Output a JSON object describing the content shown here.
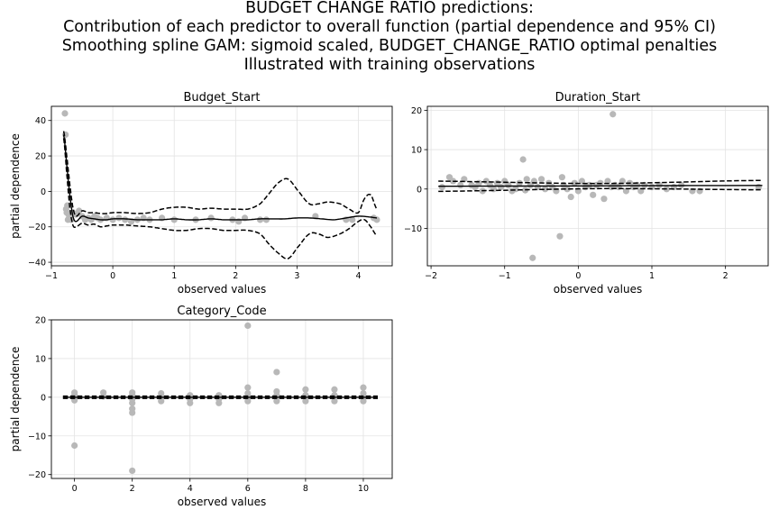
{
  "figure": {
    "title_lines": [
      "BUDGET CHANGE RATIO predictions:",
      "Contribution of each predictor to overall function (partial dependence and 95% CI)",
      "Smoothing spline GAM: sigmoid scaled, BUDGET_CHANGE_RATIO optimal penalties",
      "Illustrated with training observations"
    ]
  },
  "colors": {
    "observations": "#b8b8b8",
    "band": "#c8c8c8",
    "line": "#000000",
    "grid": "#e3e3e3"
  },
  "chart_data": [
    {
      "type": "scatter",
      "title": "Budget_Start",
      "xlabel": "observed values",
      "ylabel": "partial dependence",
      "xlim": [
        -1.0,
        4.55
      ],
      "ylim": [
        -42,
        48
      ],
      "xticks": [
        -1,
        0,
        1,
        2,
        3,
        4
      ],
      "xtick_labels": [
        "−1",
        "0",
        "1",
        "2",
        "3",
        "4"
      ],
      "yticks": [
        -40,
        -20,
        0,
        20,
        40
      ],
      "ytick_labels": [
        "−40",
        "−20",
        "0",
        "20",
        "40"
      ],
      "grid": true,
      "observations": {
        "x": [
          -0.78,
          -0.77,
          -0.76,
          -0.75,
          -0.74,
          -0.73,
          -0.72,
          -0.71,
          -0.7,
          -0.68,
          -0.65,
          -0.6,
          -0.55,
          -0.5,
          -0.45,
          -0.4,
          -0.35,
          -0.3,
          -0.25,
          -0.2,
          -0.1,
          0.0,
          0.1,
          0.2,
          0.3,
          0.4,
          0.5,
          0.6,
          0.8,
          1.0,
          1.35,
          1.6,
          1.95,
          2.05,
          2.15,
          2.4,
          2.5,
          3.3,
          3.8,
          3.9,
          4.25,
          4.3
        ],
        "y": [
          44,
          32,
          -10,
          -12,
          -8,
          -16,
          -13,
          -15,
          -14,
          -16,
          -12,
          -13,
          -11,
          -14,
          -16,
          -15,
          -16,
          -14,
          -15,
          -16,
          -15,
          -16,
          -15,
          -16,
          -17,
          -16,
          -15,
          -16,
          -15,
          -16,
          -16,
          -15,
          -16,
          -17,
          -15,
          -16,
          -16,
          -14,
          -16,
          -16,
          -15,
          -16
        ]
      },
      "pd": {
        "x": [
          -0.8,
          -0.75,
          -0.7,
          -0.65,
          -0.6,
          -0.5,
          -0.4,
          -0.3,
          -0.2,
          -0.1,
          0.0,
          0.2,
          0.4,
          0.6,
          0.8,
          1.0,
          1.2,
          1.4,
          1.6,
          1.8,
          2.0,
          2.2,
          2.4,
          2.6,
          2.8,
          3.0,
          3.2,
          3.4,
          3.6,
          3.8,
          4.0,
          4.2,
          4.3
        ],
        "y": [
          32,
          15,
          -2,
          -14,
          -17,
          -14,
          -15,
          -15.5,
          -16,
          -16,
          -15.5,
          -15.5,
          -16,
          -16,
          -16,
          -15.5,
          -16,
          -16,
          -15.5,
          -16,
          -16,
          -16,
          -15.5,
          -15.5,
          -15.5,
          -15,
          -15,
          -15.5,
          -16,
          -15,
          -14,
          -14.5,
          -15
        ]
      },
      "ci_lower": {
        "x": [
          -0.8,
          -0.75,
          -0.7,
          -0.65,
          -0.6,
          -0.5,
          -0.4,
          -0.3,
          -0.2,
          -0.1,
          0.0,
          0.2,
          0.4,
          0.6,
          0.8,
          1.0,
          1.2,
          1.4,
          1.6,
          1.8,
          2.0,
          2.2,
          2.4,
          2.55,
          2.7,
          2.85,
          3.0,
          3.2,
          3.35,
          3.5,
          3.7,
          3.85,
          4.0,
          4.1,
          4.2,
          4.3
        ],
        "y": [
          30,
          10,
          -9,
          -19,
          -20,
          -18,
          -19,
          -18.5,
          -20,
          -19.5,
          -19,
          -19,
          -19.5,
          -20,
          -21,
          -22,
          -22,
          -21,
          -21,
          -22,
          -22,
          -22,
          -24,
          -30,
          -35,
          -38,
          -32,
          -24,
          -24,
          -26,
          -24,
          -21,
          -17,
          -16,
          -20,
          -25
        ]
      },
      "ci_upper": {
        "x": [
          -0.8,
          -0.75,
          -0.7,
          -0.65,
          -0.6,
          -0.5,
          -0.4,
          -0.3,
          -0.2,
          -0.1,
          0.0,
          0.2,
          0.4,
          0.6,
          0.8,
          1.0,
          1.2,
          1.4,
          1.6,
          1.8,
          2.0,
          2.2,
          2.4,
          2.55,
          2.7,
          2.85,
          3.0,
          3.2,
          3.35,
          3.5,
          3.7,
          3.85,
          4.0,
          4.1,
          4.2,
          4.3
        ],
        "y": [
          34,
          20,
          4,
          -9,
          -14,
          -11,
          -12,
          -12,
          -12.5,
          -12.5,
          -12,
          -12,
          -12.5,
          -12,
          -10,
          -9,
          -9,
          -10,
          -9.5,
          -10,
          -10,
          -10,
          -7,
          -1,
          5,
          7,
          1,
          -7,
          -7,
          -6,
          -7,
          -10,
          -12,
          -4,
          -2,
          -10
        ]
      }
    },
    {
      "type": "scatter",
      "title": "Duration_Start",
      "xlabel": "observed values",
      "ylabel": "",
      "xlim": [
        -2.05,
        2.58
      ],
      "ylim": [
        -19.5,
        21
      ],
      "xticks": [
        -2,
        -1,
        0,
        1,
        2
      ],
      "xtick_labels": [
        "−2",
        "−1",
        "0",
        "1",
        "2"
      ],
      "yticks": [
        -10,
        0,
        10,
        20
      ],
      "ytick_labels": [
        "−10",
        "0",
        "10",
        "20"
      ],
      "grid": true,
      "observations": {
        "x": [
          -1.85,
          -1.75,
          -1.7,
          -1.6,
          -1.55,
          -1.45,
          -1.4,
          -1.35,
          -1.3,
          -1.25,
          -1.2,
          -1.15,
          -1.1,
          -1.05,
          -1.0,
          -0.95,
          -0.9,
          -0.85,
          -0.8,
          -0.75,
          -0.72,
          -0.7,
          -0.65,
          -0.62,
          -0.6,
          -0.55,
          -0.5,
          -0.45,
          -0.4,
          -0.35,
          -0.3,
          -0.25,
          -0.22,
          -0.2,
          -0.15,
          -0.1,
          -0.05,
          0.0,
          0.05,
          0.1,
          0.15,
          0.2,
          0.25,
          0.3,
          0.35,
          0.4,
          0.45,
          0.47,
          0.5,
          0.55,
          0.6,
          0.65,
          0.7,
          0.75,
          0.8,
          0.85,
          0.9,
          1.0,
          1.1,
          1.2,
          1.3,
          1.4,
          1.55,
          1.65,
          2.45
        ],
        "y": [
          0.5,
          3,
          2,
          1,
          2.5,
          1,
          0.5,
          1.5,
          -0.5,
          2,
          1,
          0,
          1.5,
          0.5,
          2,
          1,
          -0.5,
          0,
          1.5,
          7.5,
          -0.3,
          2.5,
          1,
          -17.5,
          2,
          0.5,
          2.5,
          0,
          1.5,
          0.5,
          -0.5,
          -12,
          3,
          1,
          0,
          -2,
          1.5,
          -0.5,
          2,
          0.5,
          1,
          -1.5,
          1,
          1.5,
          -2.5,
          2,
          0.5,
          19,
          1,
          0.5,
          2,
          -0.5,
          1.5,
          0.5,
          1,
          -0.5,
          1,
          0.5,
          1,
          0,
          0.5,
          1,
          -0.5,
          -0.5,
          0.5
        ]
      },
      "pd": {
        "x": [
          -1.9,
          2.5
        ],
        "y": [
          0.7,
          0.9
        ]
      },
      "ci_lower": {
        "x": [
          -1.9,
          0.3,
          2.5
        ],
        "y": [
          -0.6,
          0.1,
          -0.2
        ]
      },
      "ci_upper": {
        "x": [
          -1.9,
          0.3,
          2.5
        ],
        "y": [
          2.0,
          1.4,
          2.2
        ]
      }
    },
    {
      "type": "scatter",
      "title": "Category_Code",
      "xlabel": "observed values",
      "ylabel": "partial dependence",
      "xlim": [
        -0.8,
        11.0
      ],
      "ylim": [
        -21,
        20
      ],
      "xticks": [
        0,
        2,
        4,
        6,
        8,
        10
      ],
      "xtick_labels": [
        "0",
        "2",
        "4",
        "6",
        "8",
        "10"
      ],
      "yticks": [
        -20,
        -10,
        0,
        10,
        20
      ],
      "ytick_labels": [
        "−20",
        "−10",
        "0",
        "10",
        "20"
      ],
      "grid": true,
      "observations": {
        "x": [
          0,
          0,
          0,
          0,
          0,
          1,
          1,
          2,
          2,
          2,
          2,
          2,
          2,
          2,
          3,
          3,
          3,
          4,
          4,
          4,
          5,
          5,
          5,
          6,
          6,
          6,
          6,
          6,
          7,
          7,
          7,
          7,
          8,
          8,
          8,
          9,
          9,
          9,
          10,
          10,
          10,
          10
        ],
        "y": [
          1.2,
          0.5,
          0,
          -0.8,
          -12.5,
          1.2,
          0.2,
          1.2,
          0.5,
          -0.5,
          -1.5,
          -3,
          -4,
          -19,
          1,
          0,
          -1,
          0.5,
          -0.5,
          -1.5,
          0.5,
          -0.5,
          -1.5,
          18.5,
          2.5,
          1,
          0,
          -1,
          6.5,
          1.5,
          0.5,
          -1,
          2,
          0.5,
          -1,
          2,
          0.5,
          -1,
          2.5,
          1,
          0,
          -1
        ]
      },
      "pd": {
        "x": [
          -0.4,
          10.5
        ],
        "y": [
          0.0,
          0.0
        ]
      },
      "ci_lower": {
        "x": [
          -0.4,
          10.5
        ],
        "y": [
          -0.3,
          -0.3
        ]
      },
      "ci_upper": {
        "x": [
          -0.4,
          10.5
        ],
        "y": [
          0.3,
          0.3
        ]
      }
    }
  ]
}
